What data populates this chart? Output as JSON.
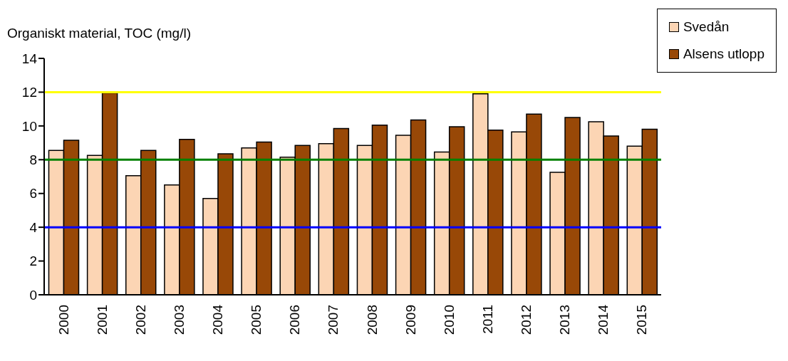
{
  "chart_data": {
    "type": "bar",
    "ylabel": "Organiskt material, TOC (mg/l)",
    "categories": [
      "2000",
      "2001",
      "2002",
      "2003",
      "2004",
      "2005",
      "2006",
      "2007",
      "2008",
      "2009",
      "2010",
      "2011",
      "2012",
      "2013",
      "2014",
      "2015"
    ],
    "series": [
      {
        "name": "Svedån",
        "color": "#fcd5b4",
        "values": [
          8.55,
          8.25,
          7.05,
          6.5,
          5.7,
          8.7,
          8.15,
          8.95,
          8.85,
          9.45,
          8.45,
          11.9,
          9.65,
          7.25,
          10.25,
          8.8
        ]
      },
      {
        "name": "Alsens utlopp",
        "color": "#984807",
        "values": [
          9.15,
          11.95,
          8.55,
          9.2,
          8.35,
          9.05,
          8.85,
          9.85,
          10.05,
          10.35,
          9.95,
          9.75,
          10.7,
          10.5,
          9.4,
          9.8
        ]
      }
    ],
    "ylim": [
      0,
      14
    ],
    "yticks": [
      0,
      2,
      4,
      6,
      8,
      10,
      12,
      14
    ],
    "ref_lines": [
      {
        "axis": "y",
        "value": 12,
        "color": "#ffff00"
      },
      {
        "axis": "y",
        "value": 8,
        "color": "#008000"
      },
      {
        "axis": "y",
        "value": 4,
        "color": "#0000ff"
      }
    ],
    "grid": false,
    "legend": "top right"
  }
}
